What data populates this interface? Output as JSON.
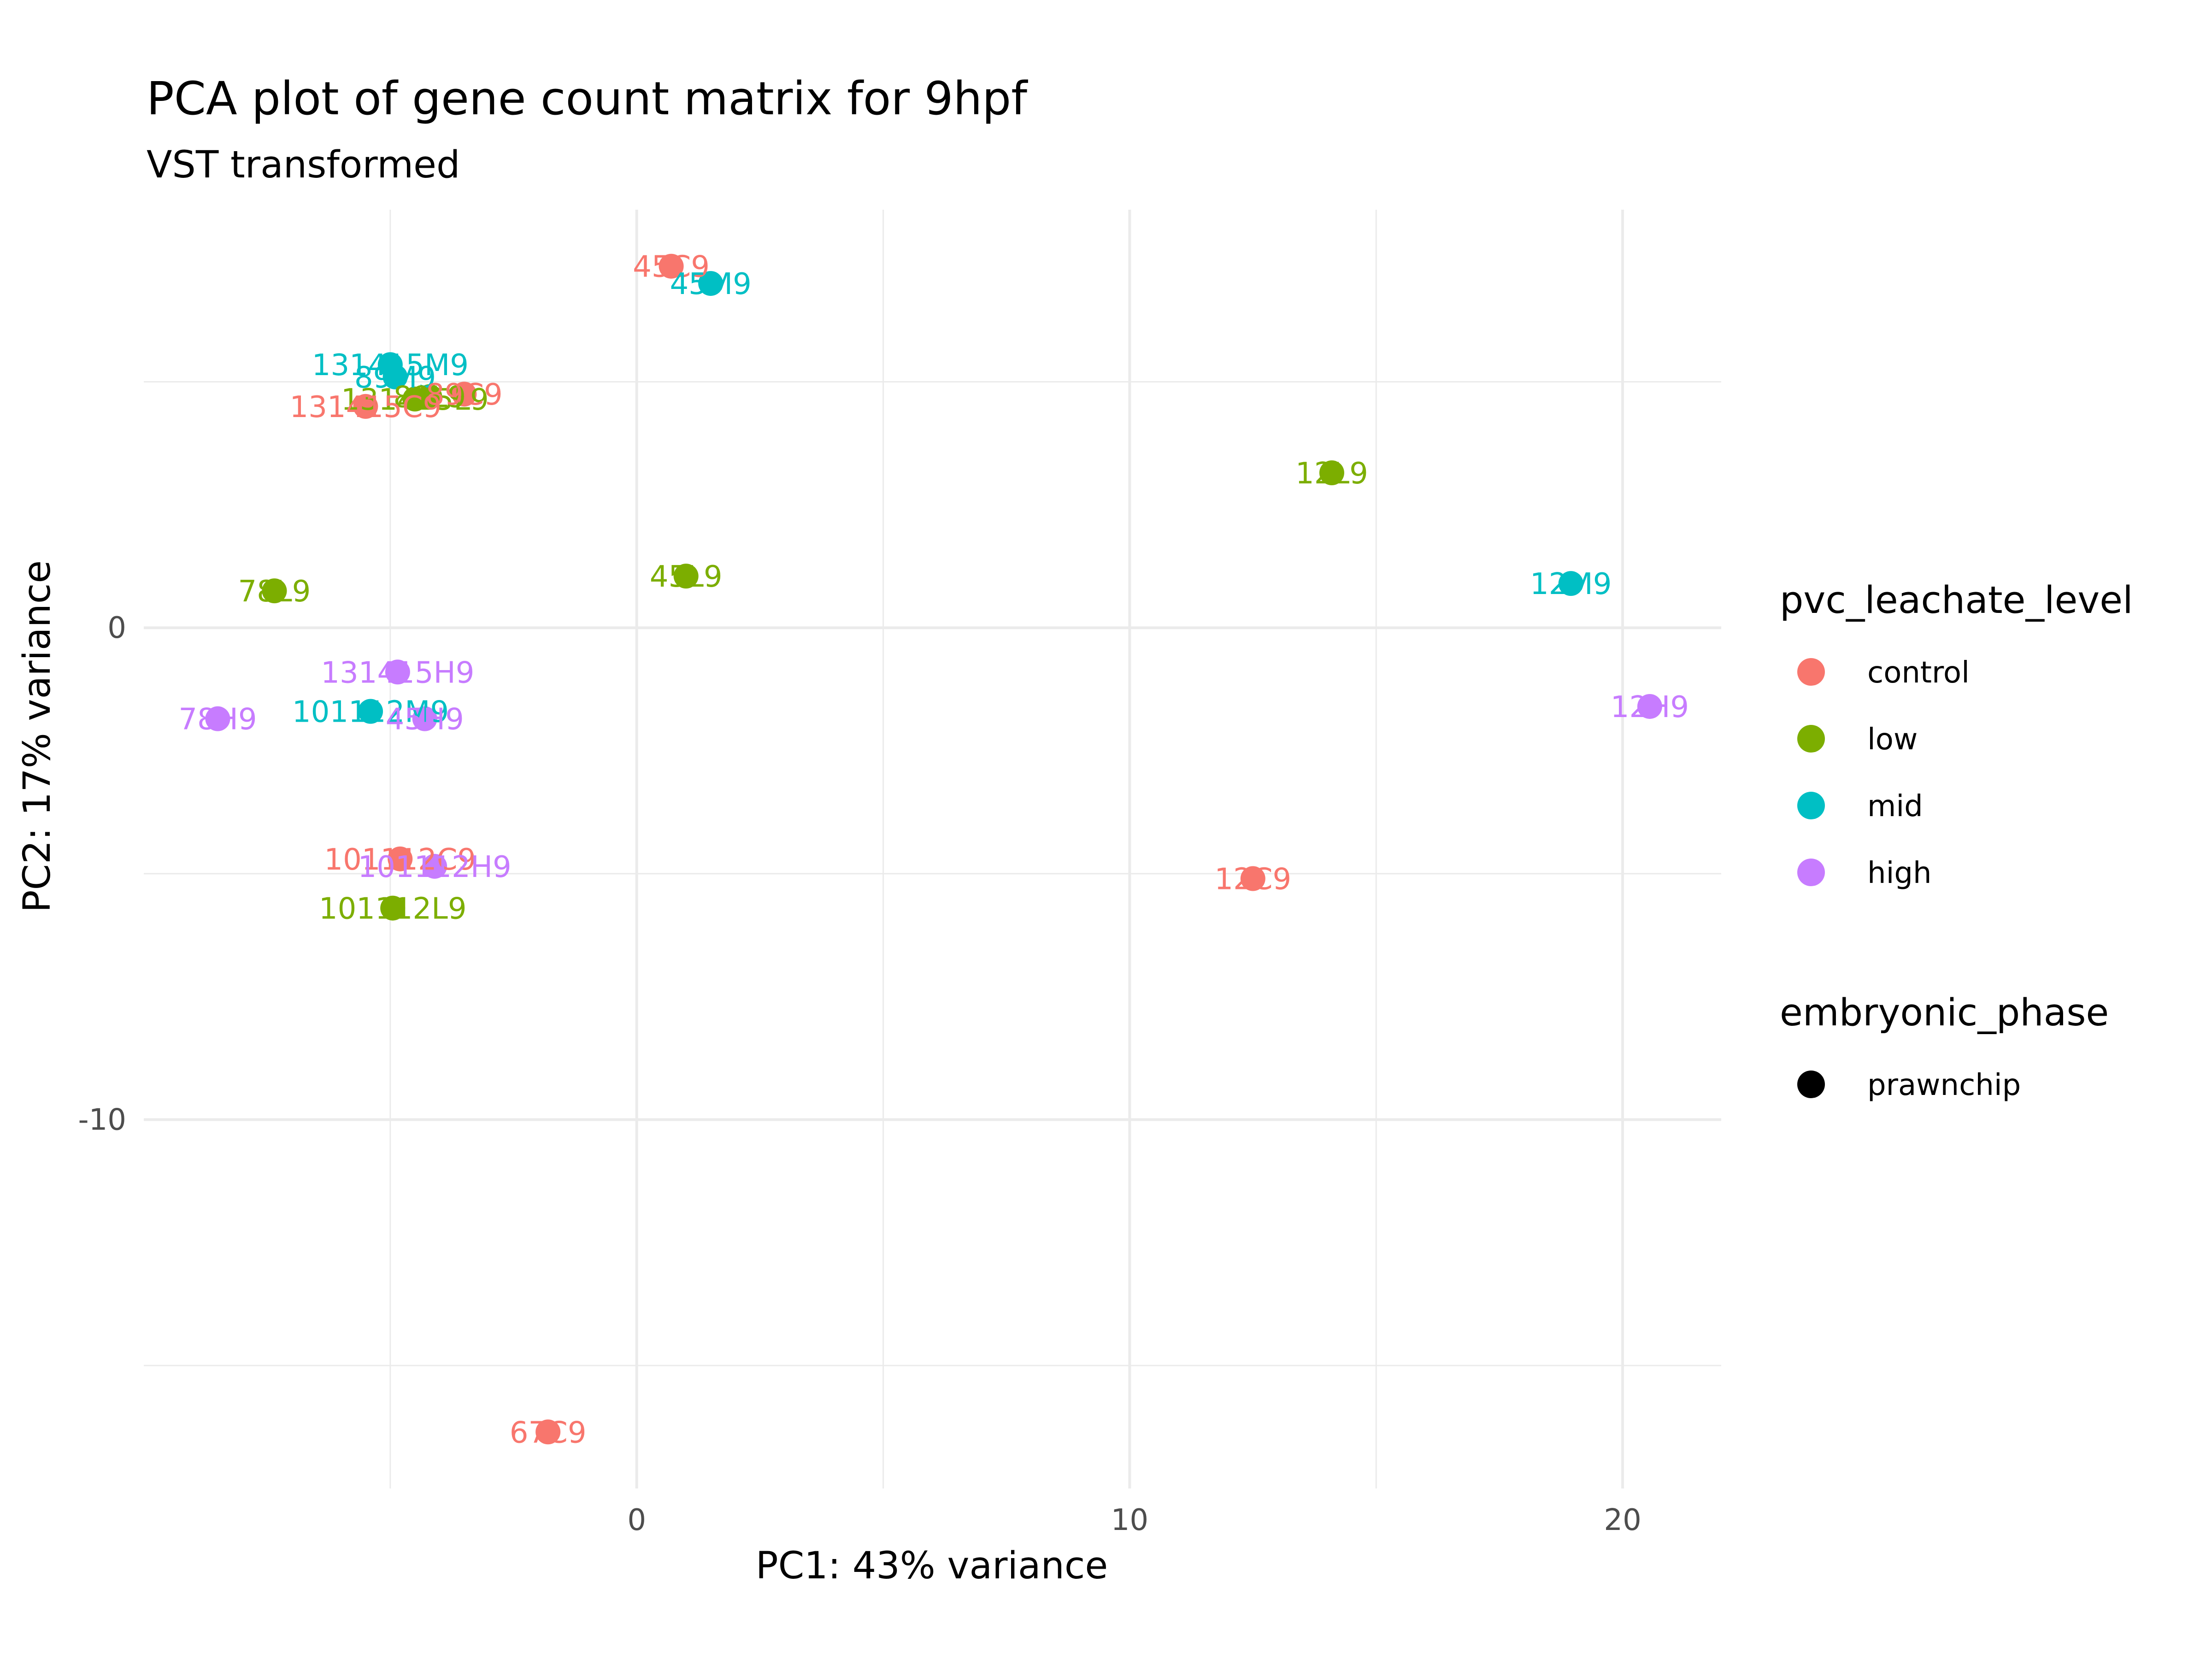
{
  "chart_data": {
    "type": "scatter",
    "title": "PCA plot of gene count matrix for 9hpf",
    "subtitle": "VST transformed",
    "xlabel": "PC1: 43% variance",
    "ylabel": "PC2: 17% variance",
    "xlim": [
      -10,
      22
    ],
    "ylim": [
      -17.5,
      8.5
    ],
    "x_ticks": [
      0,
      10,
      20
    ],
    "y_ticks": [
      0,
      -10
    ],
    "grid": true,
    "legend_placement": "right",
    "colors": {
      "control": "#F8766D",
      "low": "#7CAE00",
      "mid": "#00BFC4",
      "high": "#C77CFF"
    },
    "legends": [
      {
        "title": "pvc_leachate_level",
        "entries": [
          {
            "label": "control",
            "color": "#F8766D"
          },
          {
            "label": "low",
            "color": "#7CAE00"
          },
          {
            "label": "mid",
            "color": "#00BFC4"
          },
          {
            "label": "high",
            "color": "#C77CFF"
          }
        ]
      },
      {
        "title": "embryonic_phase",
        "entries": [
          {
            "label": "prawnchip",
            "color": "#000000"
          }
        ]
      }
    ],
    "points": [
      {
        "label": "45C9",
        "x": 0.7,
        "y": 7.35,
        "group": "control"
      },
      {
        "label": "45M9",
        "x": 1.5,
        "y": 7.0,
        "group": "mid"
      },
      {
        "label": "131415M9",
        "x": -5.0,
        "y": 5.35,
        "group": "mid"
      },
      {
        "label": "89M9",
        "x": -4.9,
        "y": 5.1,
        "group": "mid"
      },
      {
        "label": "131415L9",
        "x": -4.5,
        "y": 4.65,
        "group": "low"
      },
      {
        "label": "89L9",
        "x": -4.2,
        "y": 4.7,
        "group": "low"
      },
      {
        "label": "89C9",
        "x": -3.5,
        "y": 4.75,
        "group": "control"
      },
      {
        "label": "131415C9",
        "x": -5.5,
        "y": 4.5,
        "group": "control"
      },
      {
        "label": "12L9",
        "x": 14.1,
        "y": 3.15,
        "group": "low"
      },
      {
        "label": "78L9",
        "x": -7.35,
        "y": 0.75,
        "group": "low"
      },
      {
        "label": "45L9",
        "x": 1.0,
        "y": 1.05,
        "group": "low"
      },
      {
        "label": "12M9",
        "x": 18.95,
        "y": 0.9,
        "group": "mid"
      },
      {
        "label": "131415H9",
        "x": -4.85,
        "y": -0.9,
        "group": "high"
      },
      {
        "label": "12H9",
        "x": 20.55,
        "y": -1.6,
        "group": "high"
      },
      {
        "label": "78H9",
        "x": -8.5,
        "y": -1.85,
        "group": "high"
      },
      {
        "label": "101112M9",
        "x": -5.4,
        "y": -1.7,
        "group": "mid"
      },
      {
        "label": "45H9",
        "x": -4.3,
        "y": -1.85,
        "group": "high"
      },
      {
        "label": "101112C9",
        "x": -4.8,
        "y": -4.7,
        "group": "control"
      },
      {
        "label": "101112H9",
        "x": -4.1,
        "y": -4.85,
        "group": "high"
      },
      {
        "label": "12C9",
        "x": 12.5,
        "y": -5.1,
        "group": "control"
      },
      {
        "label": "101112L9",
        "x": -4.95,
        "y": -5.7,
        "group": "low"
      },
      {
        "label": "67C9",
        "x": -1.8,
        "y": -16.35,
        "group": "control"
      }
    ]
  }
}
